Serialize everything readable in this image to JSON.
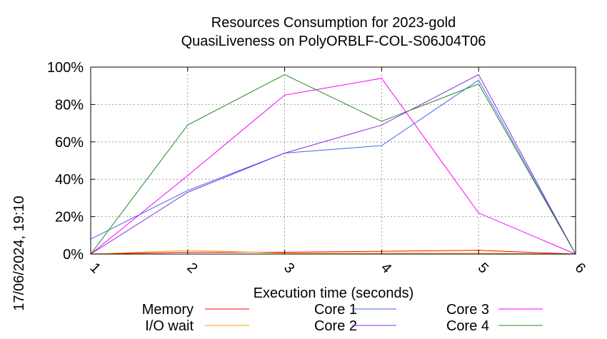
{
  "title_line1": "Resources Consumption for 2023-gold",
  "title_line2": "QuasiLiveness on PolyORBLF-COL-S06J04T06",
  "timestamp": "17/06/2024, 19:10",
  "chart_data": {
    "type": "line",
    "title": "Resources Consumption for 2023-gold QuasiLiveness on PolyORBLF-COL-S06J04T06",
    "xlabel": "Execution time (seconds)",
    "ylabel": "",
    "x": [
      1,
      2,
      3,
      4,
      5,
      6
    ],
    "x_tick_labels": [
      "1",
      "2",
      "3",
      "4",
      "5",
      "6"
    ],
    "xlim": [
      1,
      6
    ],
    "ylim": [
      0,
      100
    ],
    "y_ticks": [
      0,
      20,
      40,
      60,
      80,
      100
    ],
    "y_tick_labels": [
      "0%",
      "20%",
      "40%",
      "60%",
      "80%",
      "100%"
    ],
    "grid": true,
    "legend_position": "bottom",
    "series": [
      {
        "name": "Memory",
        "color": "#ff0000",
        "values": [
          0,
          1,
          1,
          1.5,
          2,
          0
        ]
      },
      {
        "name": "I/O wait",
        "color": "#ffa500",
        "values": [
          0,
          2,
          0.5,
          0.5,
          0.5,
          0
        ]
      },
      {
        "name": "Core 1",
        "color": "#4169e1",
        "values": [
          8,
          34,
          54,
          58,
          93,
          0
        ]
      },
      {
        "name": "Core 2",
        "color": "#8a2be2",
        "values": [
          0,
          33,
          54,
          69,
          96,
          0
        ]
      },
      {
        "name": "Core 3",
        "color": "#ff00ff",
        "values": [
          0,
          42,
          85,
          94,
          22,
          0
        ]
      },
      {
        "name": "Core 4",
        "color": "#228b22",
        "values": [
          0,
          69,
          96,
          71,
          91,
          0
        ]
      }
    ]
  }
}
